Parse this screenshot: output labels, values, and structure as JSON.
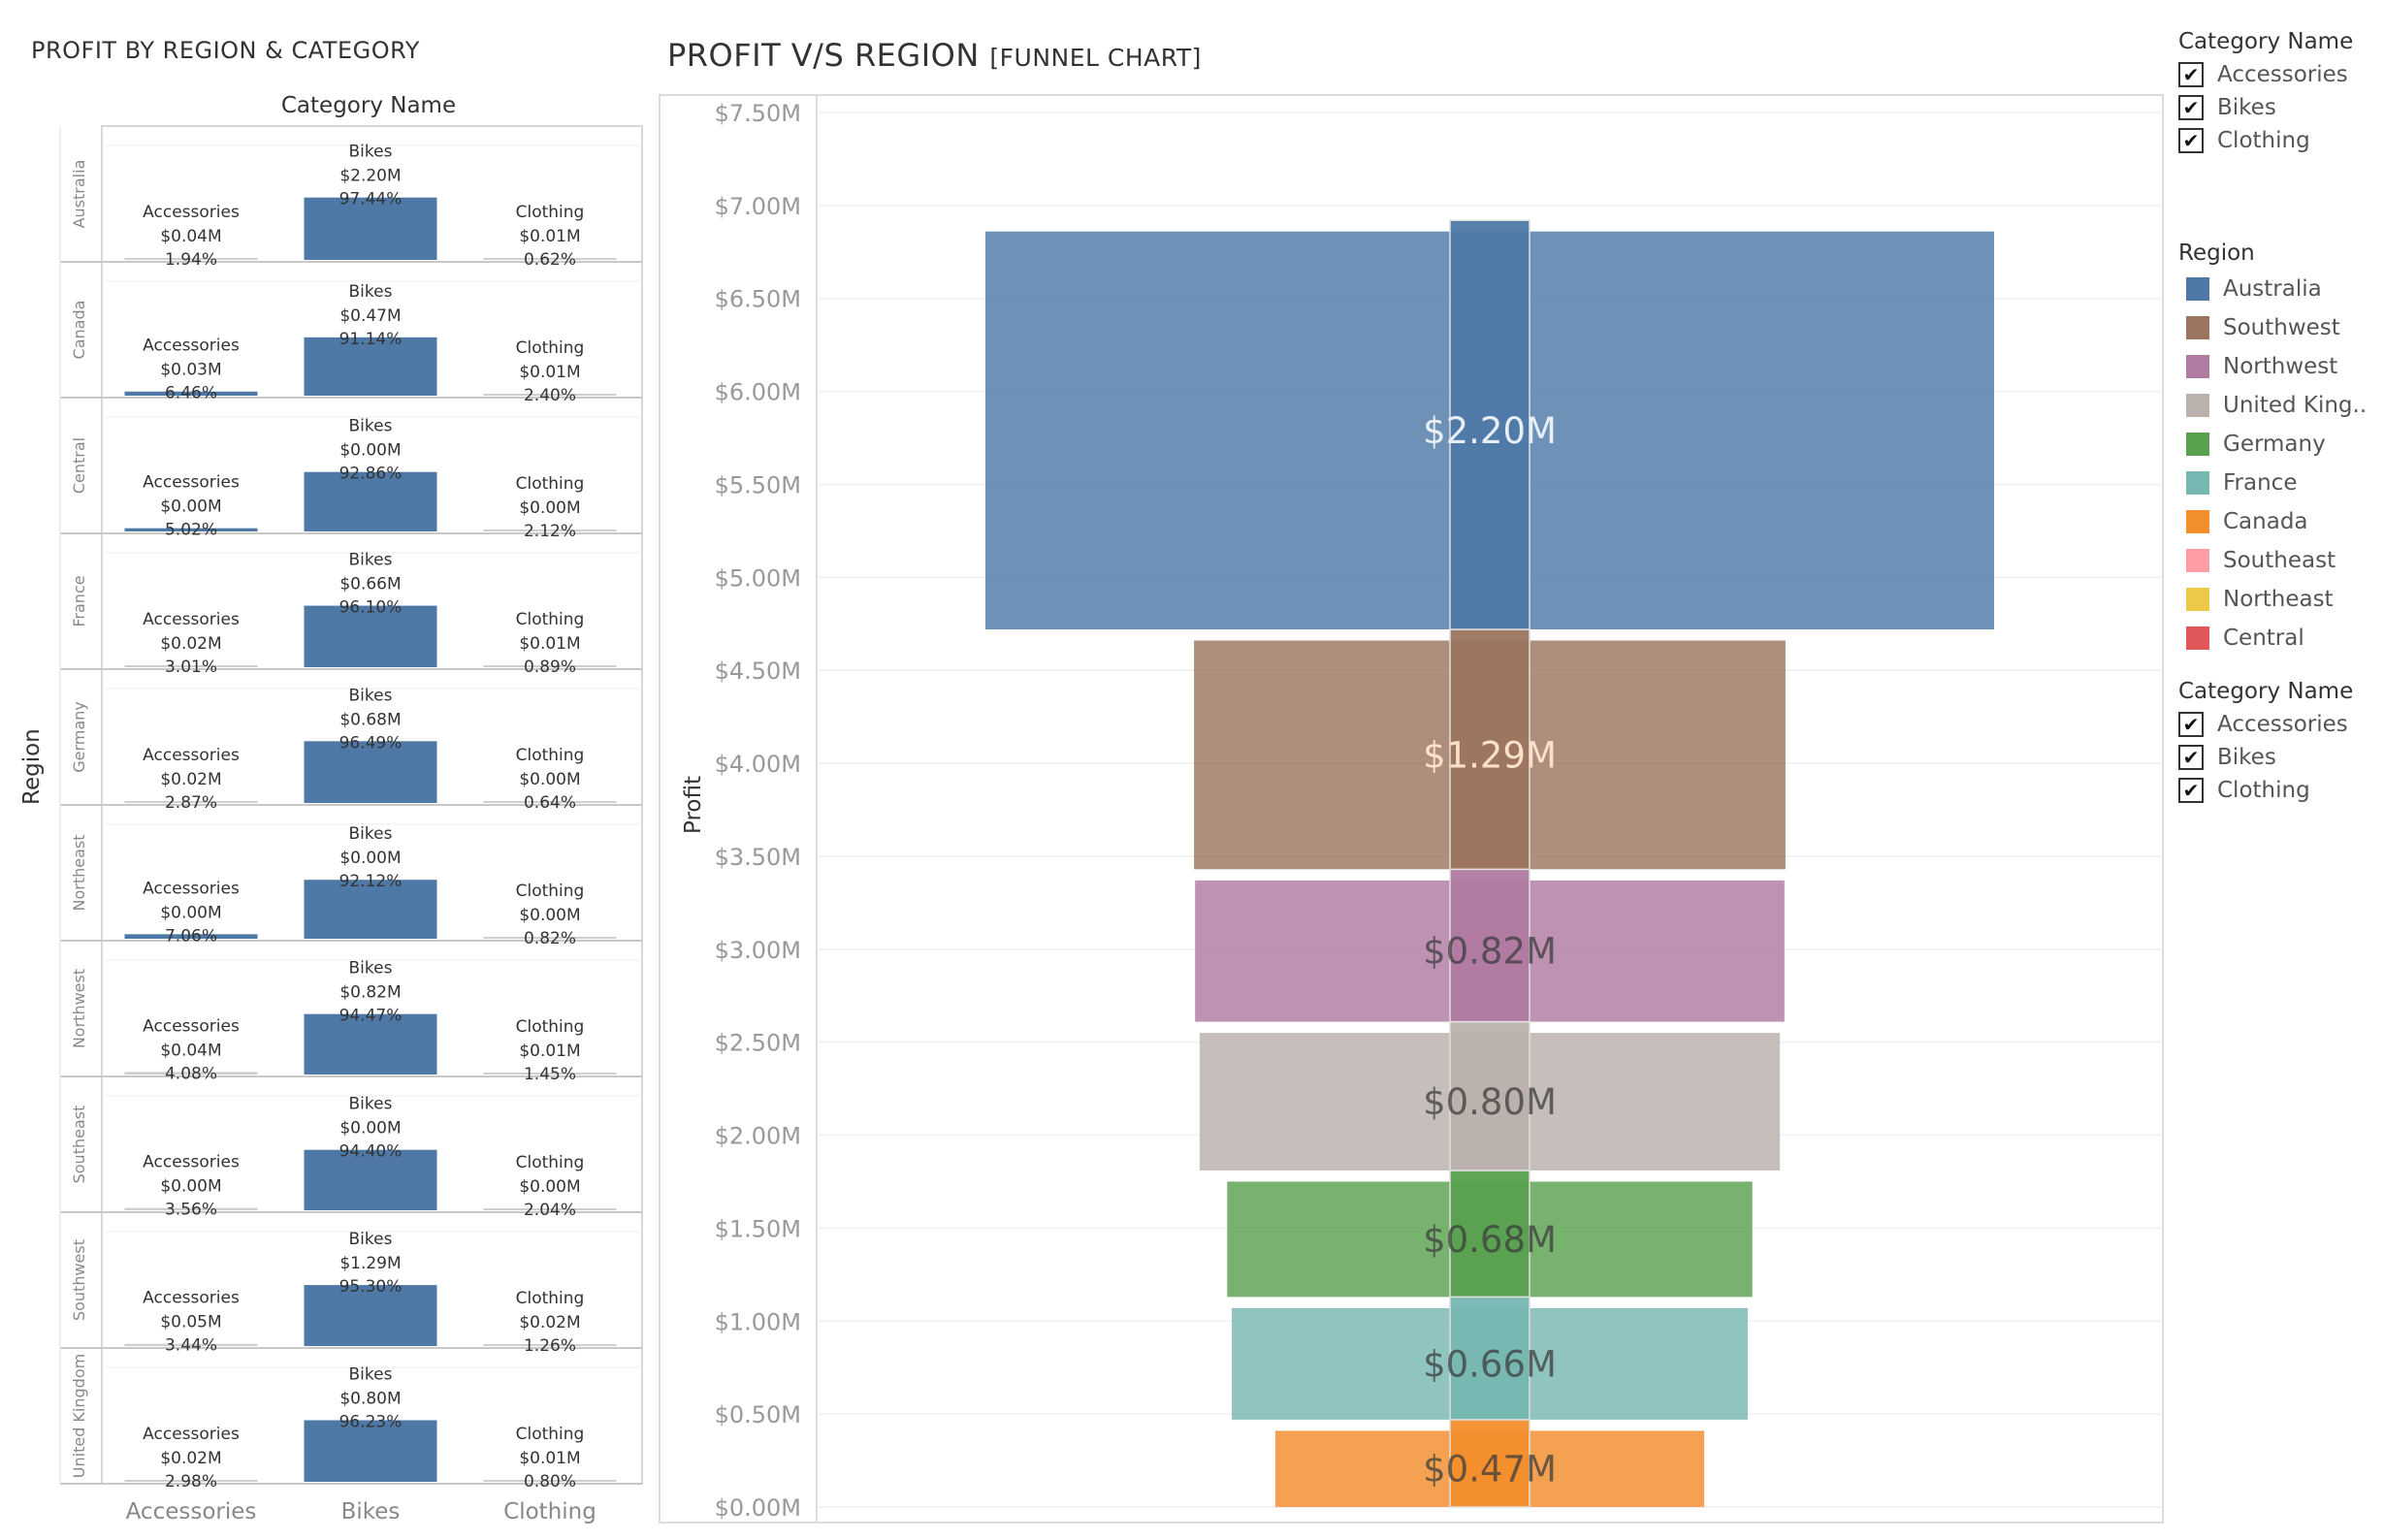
{
  "left": {
    "title": "PROFIT BY REGION & CATEGORY",
    "column_header": "Category Name",
    "row_header": "Region",
    "x_categories": [
      "Accessories",
      "Bikes",
      "Clothing"
    ]
  },
  "funnel": {
    "title": "PROFIT V/S REGION",
    "subtitle": "[FUNNEL CHART]",
    "ylabel": "Profit"
  },
  "legends": {
    "category_top": {
      "title": "Category Name",
      "items": [
        "Accessories",
        "Bikes",
        "Clothing"
      ]
    },
    "region": {
      "title": "Region",
      "items": [
        {
          "label": "Australia",
          "color": "#4e79a7"
        },
        {
          "label": "Southwest",
          "color": "#9c755f"
        },
        {
          "label": "Northwest",
          "color": "#b07aa1"
        },
        {
          "label": "United King..",
          "color": "#bab0ac"
        },
        {
          "label": "Germany",
          "color": "#59a14f"
        },
        {
          "label": "France",
          "color": "#76b7b2"
        },
        {
          "label": "Canada",
          "color": "#f28e2b"
        },
        {
          "label": "Southeast",
          "color": "#ff9da7"
        },
        {
          "label": "Northeast",
          "color": "#edc948"
        },
        {
          "label": "Central",
          "color": "#e15759"
        }
      ]
    },
    "category_bottom": {
      "title": "Category Name",
      "items": [
        "Accessories",
        "Bikes",
        "Clothing"
      ]
    }
  },
  "chart_data": [
    {
      "type": "bar",
      "title": "PROFIT BY REGION & CATEGORY",
      "xlabel": "Category Name",
      "ylabel": "Region",
      "categories": [
        "Accessories",
        "Bikes",
        "Clothing"
      ],
      "bar_color": "#4e79a7",
      "rows": [
        {
          "region": "Australia",
          "cells": [
            {
              "profit": "$0.04M",
              "pct": "1.94%",
              "share": 1.94
            },
            {
              "profit": "$2.20M",
              "pct": "97.44%",
              "share": 97.44
            },
            {
              "profit": "$0.01M",
              "pct": "0.62%",
              "share": 0.62
            }
          ]
        },
        {
          "region": "Canada",
          "cells": [
            {
              "profit": "$0.03M",
              "pct": "6.46%",
              "share": 6.46
            },
            {
              "profit": "$0.47M",
              "pct": "91.14%",
              "share": 91.14
            },
            {
              "profit": "$0.01M",
              "pct": "2.40%",
              "share": 2.4
            }
          ]
        },
        {
          "region": "Central",
          "cells": [
            {
              "profit": "$0.00M",
              "pct": "5.02%",
              "share": 5.02
            },
            {
              "profit": "$0.00M",
              "pct": "92.86%",
              "share": 92.86
            },
            {
              "profit": "$0.00M",
              "pct": "2.12%",
              "share": 2.12
            }
          ]
        },
        {
          "region": "France",
          "cells": [
            {
              "profit": "$0.02M",
              "pct": "3.01%",
              "share": 3.01
            },
            {
              "profit": "$0.66M",
              "pct": "96.10%",
              "share": 96.1
            },
            {
              "profit": "$0.01M",
              "pct": "0.89%",
              "share": 0.89
            }
          ]
        },
        {
          "region": "Germany",
          "cells": [
            {
              "profit": "$0.02M",
              "pct": "2.87%",
              "share": 2.87
            },
            {
              "profit": "$0.68M",
              "pct": "96.49%",
              "share": 96.49
            },
            {
              "profit": "$0.00M",
              "pct": "0.64%",
              "share": 0.64
            }
          ]
        },
        {
          "region": "Northeast",
          "cells": [
            {
              "profit": "$0.00M",
              "pct": "7.06%",
              "share": 7.06
            },
            {
              "profit": "$0.00M",
              "pct": "92.12%",
              "share": 92.12
            },
            {
              "profit": "$0.00M",
              "pct": "0.82%",
              "share": 0.82
            }
          ]
        },
        {
          "region": "Northwest",
          "cells": [
            {
              "profit": "$0.04M",
              "pct": "4.08%",
              "share": 4.08
            },
            {
              "profit": "$0.82M",
              "pct": "94.47%",
              "share": 94.47
            },
            {
              "profit": "$0.01M",
              "pct": "1.45%",
              "share": 1.45
            }
          ]
        },
        {
          "region": "Southeast",
          "cells": [
            {
              "profit": "$0.00M",
              "pct": "3.56%",
              "share": 3.56
            },
            {
              "profit": "$0.00M",
              "pct": "94.40%",
              "share": 94.4
            },
            {
              "profit": "$0.00M",
              "pct": "2.04%",
              "share": 2.04
            }
          ]
        },
        {
          "region": "Southwest",
          "cells": [
            {
              "profit": "$0.05M",
              "pct": "3.44%",
              "share": 3.44
            },
            {
              "profit": "$1.29M",
              "pct": "95.30%",
              "share": 95.3
            },
            {
              "profit": "$0.02M",
              "pct": "1.26%",
              "share": 1.26
            }
          ]
        },
        {
          "region": "United Kingdom",
          "cells": [
            {
              "profit": "$0.02M",
              "pct": "2.98%",
              "share": 2.98
            },
            {
              "profit": "$0.80M",
              "pct": "96.23%",
              "share": 96.23
            },
            {
              "profit": "$0.01M",
              "pct": "0.80%",
              "share": 0.8
            }
          ]
        }
      ]
    },
    {
      "type": "bar",
      "title": "PROFIT V/S REGION",
      "subtitle": "[FUNNEL CHART]",
      "ylabel": "Profit",
      "ylim": [
        0,
        7.5
      ],
      "y_unit": "$M",
      "yticks": [
        "$0.00M",
        "$0.50M",
        "$1.00M",
        "$1.50M",
        "$2.00M",
        "$2.50M",
        "$3.00M",
        "$3.50M",
        "$4.00M",
        "$4.50M",
        "$5.00M",
        "$5.50M",
        "$6.00M",
        "$6.50M",
        "$7.00M",
        "$7.50M"
      ],
      "grid": true,
      "series": [
        {
          "name": "Canada",
          "label": "$0.47M",
          "value": 0.47,
          "color": "#f28e2b"
        },
        {
          "name": "France",
          "label": "$0.66M",
          "value": 0.66,
          "color": "#76b7b2"
        },
        {
          "name": "Germany",
          "label": "$0.68M",
          "value": 0.68,
          "color": "#59a14f"
        },
        {
          "name": "United Kingdom",
          "label": "$0.80M",
          "value": 0.8,
          "color": "#bab0ac"
        },
        {
          "name": "Northwest",
          "label": "$0.82M",
          "value": 0.82,
          "color": "#b07aa1"
        },
        {
          "name": "Southwest",
          "label": "$1.29M",
          "value": 1.29,
          "color": "#9c755f"
        },
        {
          "name": "Australia",
          "label": "$2.20M",
          "value": 2.2,
          "color": "#4e79a7"
        }
      ]
    }
  ]
}
